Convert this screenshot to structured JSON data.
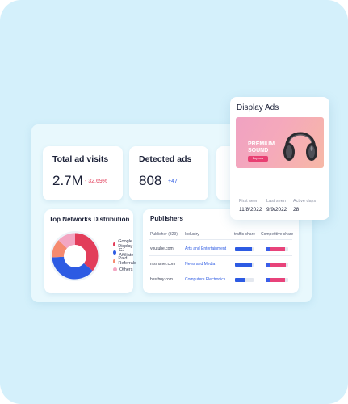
{
  "metrics": {
    "visits": {
      "title": "Total ad visits",
      "value": "2.7M",
      "delta": "- 32.69%"
    },
    "detected": {
      "title": "Detected ads",
      "value": "808",
      "delta": "+47"
    }
  },
  "networks": {
    "title": "Top Networks Distribution",
    "legend": [
      {
        "label": "Google Display",
        "color": "#e23d5a"
      },
      {
        "label": "CJ Affiliate",
        "color": "#2d5be3"
      },
      {
        "label": "Paid Referrals",
        "color": "#f58a6f"
      },
      {
        "label": "Others",
        "color": "#f3a6c2"
      }
    ],
    "shares": [
      0.36,
      0.38,
      0.13,
      0.13
    ]
  },
  "publishers": {
    "title": "Publishers",
    "headers": {
      "publisher": "Publisher  (329)",
      "industry": "Industry",
      "traffic": "traffic share",
      "competitive": "Competitive  share"
    },
    "rows": [
      {
        "publisher": "youtube.com",
        "industry": "Arts and Entertainment",
        "traffic": 0.9,
        "competitive": 0.85
      },
      {
        "publisher": "msmsnet.com",
        "industry": "News and Media",
        "traffic": 0.9,
        "competitive": 0.9
      },
      {
        "publisher": "bestbuy.com",
        "industry": "Computers Electronics ...",
        "traffic": 0.55,
        "competitive": 0.85
      }
    ],
    "colors": {
      "traffic": "#2d5be3",
      "competitive_a": "#3b5de8",
      "competitive_b": "#e8437a"
    }
  },
  "display_ads": {
    "title": "Display Ads",
    "banner": {
      "title_line1": "PREMIUM",
      "title_line2": "SOUND",
      "button": "Buy now"
    },
    "first_seen": {
      "label": "First seen",
      "value": "11/8/2022"
    },
    "last_seen": {
      "label": "Last seen",
      "value": "9/9/2022"
    },
    "active_days": {
      "label": "Active days",
      "value": "28"
    }
  }
}
